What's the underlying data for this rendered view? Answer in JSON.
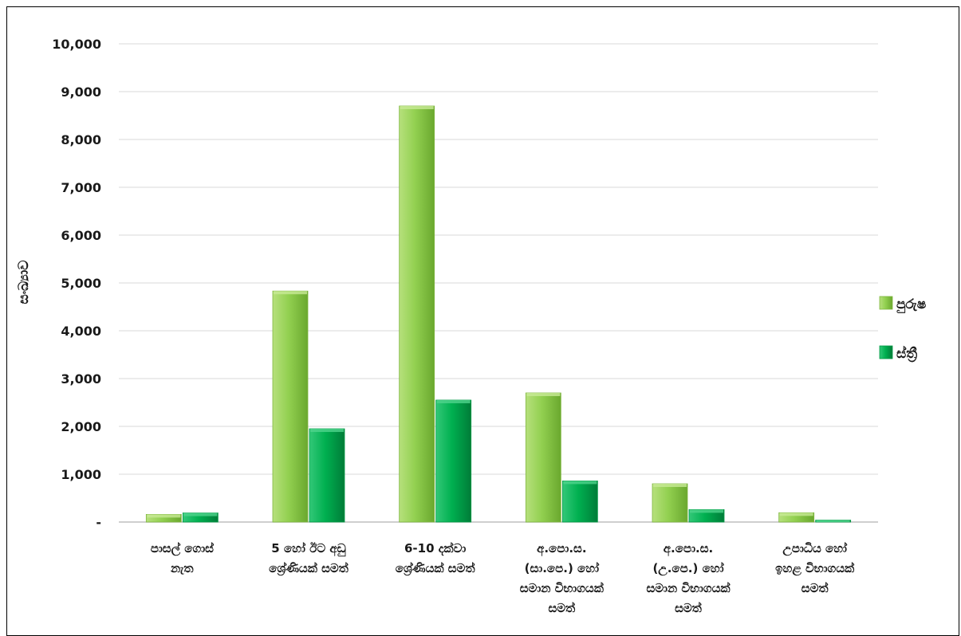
{
  "chart_data": {
    "type": "bar",
    "ylabel": "සංඛ්‍යාව",
    "ylim": [
      0,
      10000
    ],
    "yticks": [
      "-",
      "1,000",
      "2,000",
      "3,000",
      "4,000",
      "5,000",
      "6,000",
      "7,000",
      "8,000",
      "9,000",
      "10,000"
    ],
    "grid": true,
    "legend_position": "right",
    "categories": [
      [
        "පාසල් ගොස්",
        "නැත"
      ],
      [
        "5 හෝ ඊට අඩු",
        "ශ්‍රේණියක් සමත්"
      ],
      [
        "6-10 දක්වා",
        "ශ්‍රේණියක් සමත්"
      ],
      [
        "අ.පො.ස.",
        "(සා.පෙ.) හෝ",
        "සමාන විභාගයක්",
        "සමත්"
      ],
      [
        "අ.පො.ස.",
        "(උ.පෙ.) හෝ",
        "සමාන විභාගයක්",
        "සමත්"
      ],
      [
        "උපාධිය හෝ",
        "ඉහළ විභාගයක්",
        "සමත්"
      ]
    ],
    "series": [
      {
        "name": "පුරුෂ",
        "color": "#92d050",
        "values": [
          160,
          4830,
          8700,
          2700,
          800,
          195
        ]
      },
      {
        "name": "ස්ත්‍රී",
        "color": "#00b050",
        "values": [
          190,
          1950,
          2550,
          860,
          260,
          40
        ]
      }
    ]
  }
}
